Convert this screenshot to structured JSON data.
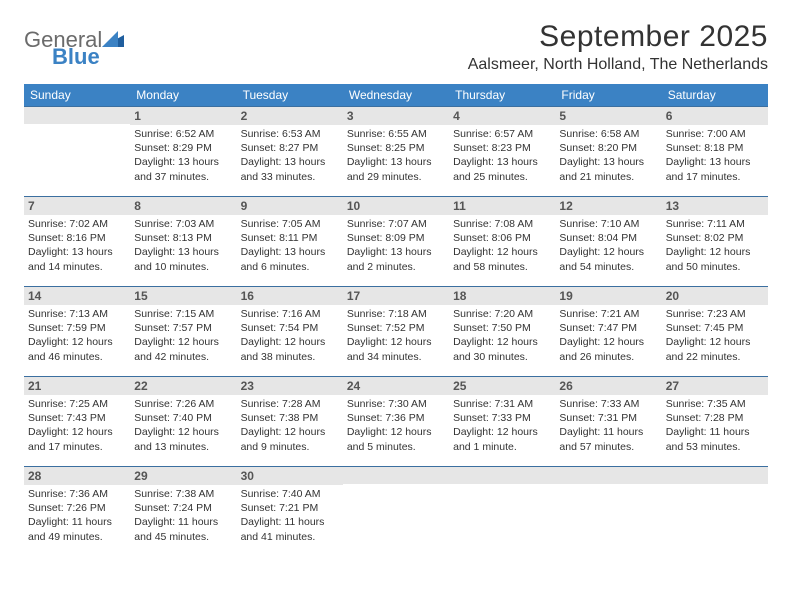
{
  "logo": {
    "word1": "General",
    "word2": "Blue"
  },
  "title": "September 2025",
  "location": "Aalsmeer, North Holland, The Netherlands",
  "colors": {
    "header_bg": "#3b82c4",
    "header_text": "#ffffff",
    "daynum_bg": "#e6e6e6",
    "daynum_border": "#3b6fa0",
    "body_bg": "#ffffff",
    "text": "#333333",
    "logo_gray": "#6b6b6b",
    "logo_blue": "#3b82c4"
  },
  "calendar": {
    "columns": [
      "Sunday",
      "Monday",
      "Tuesday",
      "Wednesday",
      "Thursday",
      "Friday",
      "Saturday"
    ],
    "weeks": [
      [
        null,
        {
          "n": "1",
          "sr": "6:52 AM",
          "ss": "8:29 PM",
          "dl": "13 hours and 37 minutes."
        },
        {
          "n": "2",
          "sr": "6:53 AM",
          "ss": "8:27 PM",
          "dl": "13 hours and 33 minutes."
        },
        {
          "n": "3",
          "sr": "6:55 AM",
          "ss": "8:25 PM",
          "dl": "13 hours and 29 minutes."
        },
        {
          "n": "4",
          "sr": "6:57 AM",
          "ss": "8:23 PM",
          "dl": "13 hours and 25 minutes."
        },
        {
          "n": "5",
          "sr": "6:58 AM",
          "ss": "8:20 PM",
          "dl": "13 hours and 21 minutes."
        },
        {
          "n": "6",
          "sr": "7:00 AM",
          "ss": "8:18 PM",
          "dl": "13 hours and 17 minutes."
        }
      ],
      [
        {
          "n": "7",
          "sr": "7:02 AM",
          "ss": "8:16 PM",
          "dl": "13 hours and 14 minutes."
        },
        {
          "n": "8",
          "sr": "7:03 AM",
          "ss": "8:13 PM",
          "dl": "13 hours and 10 minutes."
        },
        {
          "n": "9",
          "sr": "7:05 AM",
          "ss": "8:11 PM",
          "dl": "13 hours and 6 minutes."
        },
        {
          "n": "10",
          "sr": "7:07 AM",
          "ss": "8:09 PM",
          "dl": "13 hours and 2 minutes."
        },
        {
          "n": "11",
          "sr": "7:08 AM",
          "ss": "8:06 PM",
          "dl": "12 hours and 58 minutes."
        },
        {
          "n": "12",
          "sr": "7:10 AM",
          "ss": "8:04 PM",
          "dl": "12 hours and 54 minutes."
        },
        {
          "n": "13",
          "sr": "7:11 AM",
          "ss": "8:02 PM",
          "dl": "12 hours and 50 minutes."
        }
      ],
      [
        {
          "n": "14",
          "sr": "7:13 AM",
          "ss": "7:59 PM",
          "dl": "12 hours and 46 minutes."
        },
        {
          "n": "15",
          "sr": "7:15 AM",
          "ss": "7:57 PM",
          "dl": "12 hours and 42 minutes."
        },
        {
          "n": "16",
          "sr": "7:16 AM",
          "ss": "7:54 PM",
          "dl": "12 hours and 38 minutes."
        },
        {
          "n": "17",
          "sr": "7:18 AM",
          "ss": "7:52 PM",
          "dl": "12 hours and 34 minutes."
        },
        {
          "n": "18",
          "sr": "7:20 AM",
          "ss": "7:50 PM",
          "dl": "12 hours and 30 minutes."
        },
        {
          "n": "19",
          "sr": "7:21 AM",
          "ss": "7:47 PM",
          "dl": "12 hours and 26 minutes."
        },
        {
          "n": "20",
          "sr": "7:23 AM",
          "ss": "7:45 PM",
          "dl": "12 hours and 22 minutes."
        }
      ],
      [
        {
          "n": "21",
          "sr": "7:25 AM",
          "ss": "7:43 PM",
          "dl": "12 hours and 17 minutes."
        },
        {
          "n": "22",
          "sr": "7:26 AM",
          "ss": "7:40 PM",
          "dl": "12 hours and 13 minutes."
        },
        {
          "n": "23",
          "sr": "7:28 AM",
          "ss": "7:38 PM",
          "dl": "12 hours and 9 minutes."
        },
        {
          "n": "24",
          "sr": "7:30 AM",
          "ss": "7:36 PM",
          "dl": "12 hours and 5 minutes."
        },
        {
          "n": "25",
          "sr": "7:31 AM",
          "ss": "7:33 PM",
          "dl": "12 hours and 1 minute."
        },
        {
          "n": "26",
          "sr": "7:33 AM",
          "ss": "7:31 PM",
          "dl": "11 hours and 57 minutes."
        },
        {
          "n": "27",
          "sr": "7:35 AM",
          "ss": "7:28 PM",
          "dl": "11 hours and 53 minutes."
        }
      ],
      [
        {
          "n": "28",
          "sr": "7:36 AM",
          "ss": "7:26 PM",
          "dl": "11 hours and 49 minutes."
        },
        {
          "n": "29",
          "sr": "7:38 AM",
          "ss": "7:24 PM",
          "dl": "11 hours and 45 minutes."
        },
        {
          "n": "30",
          "sr": "7:40 AM",
          "ss": "7:21 PM",
          "dl": "11 hours and 41 minutes."
        },
        null,
        null,
        null,
        null
      ]
    ],
    "labels": {
      "sunrise": "Sunrise:",
      "sunset": "Sunset:",
      "daylight": "Daylight:"
    }
  }
}
